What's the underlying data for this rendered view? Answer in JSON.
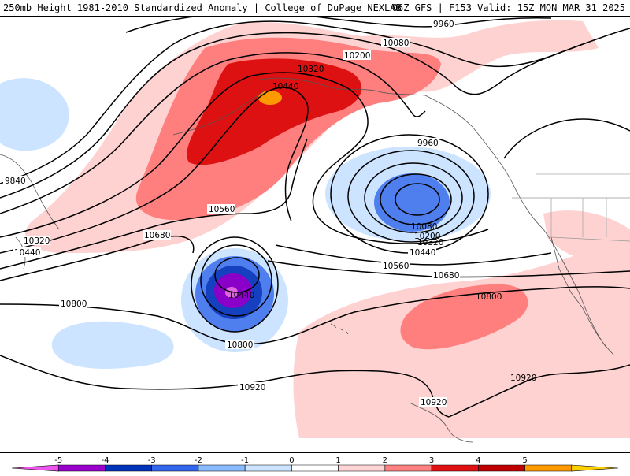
{
  "header": {
    "title": "250mb Height 1981-2010 Standardized Anomaly | College of DuPage NEXLAB",
    "run": "06Z GFS | F153 Valid: 15Z MON MAR 31 2025"
  },
  "contour_labels": {
    "c9960_top": "9960",
    "c10080_top": "10080",
    "c10200_top": "10200",
    "c10320_top": "10320",
    "c10440_top": "10440",
    "c9840": "9840",
    "c10320_left": "10320",
    "c10440_left": "10440",
    "c10560_mid": "10560",
    "c10680_left": "10680",
    "c9960_low": "9960",
    "c10080_low": "10080",
    "c10200_low": "10200",
    "c10320_low": "10320",
    "c10440_low": "10440",
    "c10560_low": "10560",
    "c10680_right": "10680",
    "c10800_left": "10800",
    "c10800_right": "10800",
    "c10440_cutoff": "10440",
    "c10800_bottom": "10800",
    "c10920_mid": "10920",
    "c10920_bottom": "10920",
    "c10920_right": "10920"
  },
  "colorbar": {
    "ticks": [
      "-5",
      "-4",
      "-3",
      "-2",
      "-1",
      "0",
      "1",
      "2",
      "3",
      "4",
      "5"
    ],
    "colors": [
      "#ee55ee",
      "#9900cc",
      "#0033bb",
      "#3366ee",
      "#88bbff",
      "#cce4ff",
      "#ffffff",
      "#ffd4d4",
      "#ff8080",
      "#e01010",
      "#c00000",
      "#ff9900",
      "#ffd000"
    ]
  },
  "shading_colors": {
    "pos1": "#ffd2d2",
    "pos2": "#ff7f7f",
    "pos3": "#dd1111",
    "pos4": "#ff9900",
    "neg1": "#cce4ff",
    "neg2": "#4f7fee",
    "neg3": "#1540c0",
    "neg4": "#8a00c8",
    "neg5": "#e066e0"
  }
}
